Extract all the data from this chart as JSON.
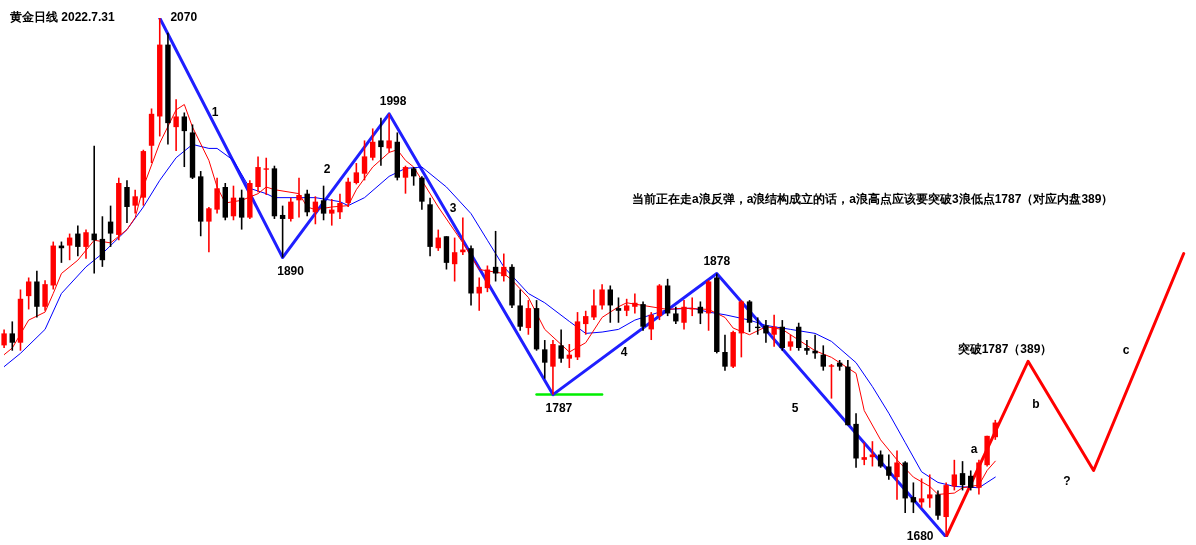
{
  "chart_data": {
    "type": "candlestick",
    "title": "黄金日线 2022.7.31",
    "categories": [
      null,
      null,
      null,
      null,
      null,
      null,
      null,
      null,
      null,
      null,
      null,
      null,
      null,
      null,
      null,
      null,
      null,
      null,
      null,
      null,
      null,
      null,
      null,
      null,
      null,
      null,
      null,
      null,
      null,
      null,
      null,
      null,
      null,
      null,
      null,
      null,
      null,
      null,
      null,
      null,
      null,
      null,
      null,
      null,
      null,
      null,
      null,
      null,
      null,
      null,
      null,
      null,
      null,
      null,
      null,
      null,
      null,
      null,
      null,
      null,
      null,
      null,
      null,
      null,
      null,
      null,
      null,
      null,
      null,
      null,
      null,
      null,
      null,
      null,
      null,
      null,
      null,
      null,
      null,
      null,
      null,
      null,
      null,
      null,
      null,
      null,
      null,
      null,
      null,
      null,
      null,
      null,
      null,
      null,
      null,
      null,
      null,
      null,
      null,
      null,
      null,
      null,
      null,
      null,
      null,
      null,
      null,
      null,
      null,
      null,
      null,
      null,
      null,
      null,
      null,
      null,
      null,
      null,
      null,
      null,
      null,
      null,
      null,
      null,
      null,
      null,
      null,
      null,
      null,
      null,
      null,
      null,
      null,
      null,
      null,
      null,
      null,
      null,
      null,
      null,
      null,
      null,
      null,
      null,
      null,
      null
    ],
    "colors": [
      "#ff0000",
      "#000000",
      "#ff0000",
      "#ff0000",
      "#000000",
      "#ff0000",
      "#ff0000",
      "#000000",
      "#ff0000",
      "#000000",
      "#ff0000",
      "#000000",
      "#000000",
      "#000000",
      "#ff0000",
      "#000000",
      "#ff0000",
      "#ff0000",
      "#ff0000",
      "#ff0000",
      "#000000",
      "#ff0000",
      "#000000",
      "#000000",
      "#000000",
      "#ff0000",
      "#ff0000",
      "#000000",
      "#ff0000",
      "#000000",
      "#ff0000",
      "#ff0000",
      "#ff0000",
      "#000000",
      "#000000",
      "#ff0000",
      "#ff0000",
      "#000000",
      "#ff0000",
      "#000000",
      "#ff0000",
      "#ff0000",
      "#ff0000",
      "#ff0000",
      "#ff0000",
      "#ff0000",
      "#000000",
      "#ff0000",
      "#000000",
      "#ff0000",
      "#000000",
      "#000000",
      "#000000",
      "#ff0000",
      "#000000",
      "#ff0000",
      "#ff0000",
      "#000000",
      "#ff0000",
      "#ff0000",
      "#000000",
      "#ff0000",
      "#000000",
      "#000000",
      "#ff0000",
      "#000000",
      "#000000",
      "#ff0000",
      "#000000",
      "#ff0000",
      "#ff0000",
      "#ff0000",
      "#ff0000",
      "#ff0000",
      "#000000",
      "#000000",
      "#ff0000",
      "#ff0000",
      "#000000",
      "#ff0000",
      "#ff0000",
      "#000000",
      "#000000",
      "#ff0000",
      "#ff0000",
      "#000000",
      "#ff0000",
      "#000000",
      "#000000",
      "#ff0000",
      "#ff0000",
      "#000000",
      "#000000",
      "#000000",
      "#ff0000",
      "#000000",
      "#ff0000",
      "#000000",
      "#000000",
      "#000000",
      "#000000",
      "#ff0000",
      "#000000",
      "#000000",
      "#000000",
      "#ff0000",
      "#ff0000",
      "#000000",
      "#000000",
      "#ff0000",
      "#000000",
      "#000000",
      "#ff0000",
      "#ff0000",
      "#000000",
      "#ff0000",
      "#ff0000",
      "#000000",
      "#000000",
      "#ff0000",
      "#ff0000",
      "#ff0000",
      null,
      null,
      null,
      null,
      null,
      null,
      null,
      null,
      null,
      null,
      null,
      null,
      null,
      null,
      null,
      null,
      null,
      null,
      null,
      null,
      null,
      null,
      null,
      null
    ],
    "ohlc": [
      [
        1824,
        1836,
        1822,
        1833
      ],
      [
        1833,
        1842,
        1820,
        1826
      ],
      [
        1826,
        1866,
        1820,
        1859
      ],
      [
        1861,
        1875,
        1851,
        1872
      ],
      [
        1872,
        1880,
        1845,
        1853
      ],
      [
        1853,
        1873,
        1850,
        1870
      ],
      [
        1869,
        1902,
        1866,
        1899
      ],
      [
        1899,
        1902,
        1886,
        1897
      ],
      [
        1899,
        1908,
        1888,
        1905
      ],
      [
        1908,
        1914,
        1891,
        1898
      ],
      [
        1898,
        1911,
        1889,
        1909
      ],
      [
        1908,
        1974,
        1878,
        1903
      ],
      [
        1904,
        1921,
        1883,
        1888
      ],
      [
        1917,
        1929,
        1898,
        1908
      ],
      [
        1907,
        1950,
        1903,
        1946
      ],
      [
        1943,
        1948,
        1916,
        1928
      ],
      [
        1929,
        1941,
        1923,
        1936
      ],
      [
        1935,
        1971,
        1929,
        1970
      ],
      [
        1974,
        2002,
        1961,
        1998
      ],
      [
        1996,
        2070,
        1981,
        2050
      ],
      [
        2050,
        2059,
        1975,
        1991
      ],
      [
        1988,
        2009,
        1970,
        1996
      ],
      [
        1996,
        1999,
        1958,
        1985
      ],
      [
        1984,
        1990,
        1949,
        1950
      ],
      [
        1951,
        1955,
        1906,
        1917
      ],
      [
        1917,
        1928,
        1894,
        1927
      ],
      [
        1926,
        1950,
        1923,
        1942
      ],
      [
        1943,
        1946,
        1918,
        1920
      ],
      [
        1921,
        1944,
        1918,
        1935
      ],
      [
        1935,
        1941,
        1911,
        1920
      ],
      [
        1920,
        1948,
        1919,
        1946
      ],
      [
        1943,
        1966,
        1939,
        1958
      ],
      [
        1956,
        1965,
        1937,
        1957
      ],
      [
        1957,
        1959,
        1919,
        1921
      ],
      [
        1922,
        1929,
        1890,
        1919
      ],
      [
        1919,
        1935,
        1917,
        1932
      ],
      [
        1933,
        1950,
        1920,
        1937
      ],
      [
        1938,
        1941,
        1921,
        1924
      ],
      [
        1924,
        1936,
        1915,
        1932
      ],
      [
        1933,
        1944,
        1918,
        1923
      ],
      [
        1923,
        1934,
        1914,
        1926
      ],
      [
        1924,
        1938,
        1919,
        1931
      ],
      [
        1931,
        1950,
        1928,
        1947
      ],
      [
        1946,
        1961,
        1945,
        1954
      ],
      [
        1953,
        1978,
        1948,
        1966
      ],
      [
        1965,
        1987,
        1963,
        1977
      ],
      [
        1978,
        1995,
        1959,
        1973
      ],
      [
        1972,
        1998,
        1969,
        1978
      ],
      [
        1977,
        1984,
        1948,
        1950
      ],
      [
        1950,
        1959,
        1938,
        1958
      ],
      [
        1957,
        1958,
        1944,
        1951
      ],
      [
        1950,
        1951,
        1926,
        1932
      ],
      [
        1930,
        1935,
        1891,
        1898
      ],
      [
        1897,
        1911,
        1895,
        1905
      ],
      [
        1906,
        1906,
        1881,
        1886
      ],
      [
        1885,
        1905,
        1872,
        1894
      ],
      [
        1894,
        1920,
        1892,
        1896
      ],
      [
        1897,
        1899,
        1854,
        1863
      ],
      [
        1863,
        1875,
        1850,
        1868
      ],
      [
        1867,
        1884,
        1864,
        1881
      ],
      [
        1883,
        1910,
        1872,
        1878
      ],
      [
        1876,
        1893,
        1872,
        1883
      ],
      [
        1883,
        1885,
        1852,
        1854
      ],
      [
        1854,
        1866,
        1835,
        1838
      ],
      [
        1837,
        1858,
        1832,
        1852
      ],
      [
        1852,
        1858,
        1820,
        1821
      ],
      [
        1821,
        1828,
        1799,
        1811
      ],
      [
        1808,
        1828,
        1787,
        1825
      ],
      [
        1824,
        1836,
        1811,
        1814
      ],
      [
        1814,
        1825,
        1807,
        1817
      ],
      [
        1815,
        1849,
        1813,
        1842
      ],
      [
        1840,
        1850,
        1832,
        1846
      ],
      [
        1845,
        1866,
        1843,
        1854
      ],
      [
        1854,
        1870,
        1851,
        1866
      ],
      [
        1866,
        1869,
        1841,
        1854
      ],
      [
        1852,
        1860,
        1841,
        1850
      ],
      [
        1850,
        1859,
        1846,
        1854
      ],
      [
        1853,
        1863,
        1848,
        1856
      ],
      [
        1855,
        1857,
        1835,
        1838
      ],
      [
        1836,
        1849,
        1828,
        1847
      ],
      [
        1846,
        1870,
        1843,
        1869
      ],
      [
        1869,
        1874,
        1846,
        1848
      ],
      [
        1848,
        1853,
        1840,
        1842
      ],
      [
        1841,
        1858,
        1836,
        1853
      ],
      [
        1851,
        1860,
        1846,
        1852
      ],
      [
        1853,
        1857,
        1840,
        1848
      ],
      [
        1848,
        1873,
        1835,
        1872
      ],
      [
        1875,
        1878,
        1818,
        1819
      ],
      [
        1819,
        1832,
        1805,
        1808
      ],
      [
        1808,
        1835,
        1807,
        1834
      ],
      [
        1833,
        1858,
        1815,
        1857
      ],
      [
        1857,
        1858,
        1834,
        1841
      ],
      [
        1838,
        1845,
        1832,
        1837
      ],
      [
        1839,
        1843,
        1826,
        1833
      ],
      [
        1832,
        1847,
        1823,
        1838
      ],
      [
        1838,
        1843,
        1820,
        1822
      ],
      [
        1823,
        1832,
        1820,
        1827
      ],
      [
        1838,
        1841,
        1820,
        1822
      ],
      [
        1822,
        1828,
        1817,
        1820
      ],
      [
        1820,
        1832,
        1814,
        1818
      ],
      [
        1817,
        1824,
        1805,
        1808
      ],
      [
        1808,
        1810,
        1784,
        1809
      ],
      [
        1811,
        1813,
        1805,
        1808
      ],
      [
        1808,
        1813,
        1764,
        1764
      ],
      [
        1765,
        1773,
        1732,
        1739
      ],
      [
        1738,
        1751,
        1734,
        1740
      ],
      [
        1740,
        1752,
        1733,
        1742
      ],
      [
        1742,
        1745,
        1732,
        1733
      ],
      [
        1733,
        1742,
        1723,
        1726
      ],
      [
        1725,
        1745,
        1708,
        1736
      ],
      [
        1736,
        1737,
        1698,
        1709
      ],
      [
        1710,
        1721,
        1698,
        1706
      ],
      [
        1706,
        1724,
        1702,
        1709
      ],
      [
        1709,
        1727,
        1702,
        1712
      ],
      [
        1712,
        1715,
        1693,
        1696
      ],
      [
        1695,
        1721,
        1680,
        1719
      ],
      [
        1718,
        1738,
        1715,
        1727
      ],
      [
        1728,
        1737,
        1715,
        1719
      ],
      [
        1726,
        1730,
        1715,
        1717
      ],
      [
        1717,
        1738,
        1712,
        1736
      ],
      [
        1734,
        1756,
        1733,
        1756
      ],
      [
        1755,
        1768,
        1753,
        1766
      ],
      null,
      null,
      null,
      null,
      null,
      null,
      null,
      null,
      null,
      null,
      null,
      null,
      null,
      null,
      null,
      null,
      null,
      null,
      null,
      null,
      null,
      null,
      null,
      null
    ],
    "series": [
      {
        "type": "line",
        "color": "#ff0000",
        "values": [
          1817,
          1822,
          null,
          1843,
          null,
          1849,
          1863,
          1878,
          null,
          1888,
          null,
          1903,
          null,
          1901,
          null,
          1911,
          1920,
          1943,
          null,
          1976,
          null,
          2001,
          2005,
          1988,
          null,
          1963,
          1943,
          1931,
          null,
          1933,
          null,
          1938,
          1943,
          1941,
          null,
          null,
          1938,
          1928,
          1926,
          null,
          1928,
          null,
          1929,
          1941,
          null,
          1958,
          null,
          1969,
          1971,
          1963,
          1958,
          null,
          null,
          1928,
          null,
          null,
          1901,
          null,
          1881,
          null,
          null,
          1878,
          1873,
          null,
          1860,
          null,
          1836,
          null,
          null,
          1819,
          null,
          1826,
          null,
          1845,
          null,
          1853,
          1856,
          null,
          null,
          null,
          null,
          1851,
          null,
          1852,
          null,
          null,
          1851,
          null,
          1845,
          1837,
          null,
          1832,
          null,
          1838,
          null,
          1836,
          null,
          1828,
          null,
          1820,
          null,
          1815,
          null,
          null,
          1803,
          1775,
          null,
          1753,
          null,
          1738,
          null,
          1725,
          null,
          1718,
          1712,
          null,
          1713,
          1717,
          null,
          1719,
          1730,
          1737,
          null,
          null,
          null,
          null,
          null,
          null,
          null,
          null,
          null,
          null,
          null,
          null,
          null,
          null,
          null,
          null,
          null,
          null,
          null,
          null,
          null,
          null,
          null,
          null
        ]
      },
      {
        "type": "line",
        "color": "#0000ff",
        "values": [
          1808,
          null,
          1818,
          null,
          null,
          1836,
          null,
          1863,
          null,
          null,
          1883,
          null,
          1893,
          null,
          null,
          1911,
          null,
          1928,
          null,
          1948,
          null,
          1965,
          null,
          1975,
          null,
          1972,
          1972,
          null,
          1963,
          null,
          1942,
          null,
          1938,
          1935,
          null,
          null,
          1935,
          null,
          1935,
          null,
          null,
          1932,
          1929,
          null,
          1935,
          null,
          null,
          1951,
          null,
          1957,
          null,
          1958,
          null,
          null,
          1943,
          null,
          null,
          1923,
          null,
          1903,
          null,
          1883,
          null,
          null,
          1863,
          null,
          1856,
          null,
          null,
          1842,
          null,
          1833,
          null,
          1834,
          null,
          1836,
          null,
          1843,
          null,
          null,
          null,
          1851,
          null,
          null,
          1852,
          null,
          1849,
          null,
          1847,
          null,
          null,
          1843,
          null,
          1839,
          null,
          null,
          1836,
          null,
          null,
          1833,
          null,
          1827,
          null,
          null,
          1811,
          null,
          1793,
          null,
          1773,
          null,
          1751,
          null,
          1729,
          null,
          1721,
          null,
          1718,
          null,
          null,
          1717,
          null,
          1725,
          null,
          null,
          null,
          null,
          null,
          null,
          null,
          null,
          null,
          null,
          null,
          null,
          null,
          null,
          null,
          null,
          null,
          null,
          null,
          null,
          null,
          null,
          null,
          null
        ]
      },
      {
        "type": "line",
        "color": "#1f1fff",
        "values": [
          null,
          null,
          null,
          null,
          null,
          null,
          null,
          null,
          null,
          null,
          null,
          null,
          null,
          null,
          null,
          null,
          null,
          null,
          null,
          2070,
          null,
          null,
          null,
          null,
          null,
          null,
          null,
          null,
          null,
          null,
          null,
          null,
          null,
          null,
          1890,
          null,
          null,
          null,
          null,
          null,
          null,
          null,
          null,
          null,
          null,
          null,
          null,
          1998,
          null,
          null,
          null,
          null,
          null,
          null,
          null,
          null,
          null,
          null,
          null,
          null,
          null,
          null,
          null,
          null,
          null,
          null,
          null,
          1787,
          null,
          null,
          null,
          null,
          null,
          null,
          null,
          null,
          null,
          null,
          null,
          null,
          null,
          null,
          null,
          null,
          null,
          null,
          null,
          1878,
          null,
          null,
          null,
          null,
          null,
          null,
          null,
          null,
          null,
          null,
          null,
          null,
          null,
          null,
          null,
          null,
          null,
          null,
          null,
          null,
          null,
          null,
          null,
          null,
          null,
          null,
          null,
          1680,
          null,
          null,
          null,
          null,
          null,
          null,
          null,
          null,
          null,
          null,
          null,
          null,
          null,
          null,
          null,
          null,
          null,
          null,
          null,
          null,
          null,
          null,
          null,
          null,
          null,
          null,
          null,
          null,
          null,
          null
        ],
        "value_labels": [
          null,
          null,
          null,
          null,
          null,
          null,
          null,
          null,
          null,
          null,
          null,
          null,
          null,
          null,
          null,
          null,
          null,
          null,
          null,
          "2070",
          null,
          null,
          null,
          null,
          null,
          null,
          null,
          null,
          null,
          null,
          null,
          null,
          null,
          null,
          "1890",
          null,
          null,
          null,
          null,
          null,
          null,
          null,
          null,
          null,
          null,
          null,
          null,
          "1998",
          null,
          null,
          null,
          null,
          null,
          null,
          null,
          null,
          null,
          null,
          null,
          null,
          null,
          null,
          null,
          null,
          null,
          null,
          null,
          "1787",
          null,
          null,
          null,
          null,
          null,
          null,
          null,
          null,
          null,
          null,
          null,
          null,
          null,
          null,
          null,
          null,
          null,
          null,
          null,
          "1878",
          null,
          null,
          null,
          null,
          null,
          null,
          null,
          null,
          null,
          null,
          null,
          null,
          null,
          null,
          null,
          null,
          null,
          null,
          null,
          null,
          null,
          null,
          null,
          null,
          null,
          null,
          null,
          "1680",
          null,
          null,
          null,
          null,
          null,
          null,
          null,
          null,
          null,
          null,
          null,
          null,
          null,
          null,
          null,
          null,
          null,
          null,
          null,
          null,
          null,
          null,
          null,
          null,
          null,
          null,
          null,
          null,
          null,
          null
        ]
      },
      {
        "type": "line",
        "color": "#ff0000",
        "values": [
          null,
          null,
          null,
          null,
          null,
          null,
          null,
          null,
          null,
          null,
          null,
          null,
          null,
          null,
          null,
          null,
          null,
          null,
          null,
          null,
          null,
          null,
          null,
          null,
          null,
          null,
          null,
          null,
          null,
          null,
          null,
          null,
          null,
          null,
          null,
          null,
          null,
          null,
          null,
          null,
          null,
          null,
          null,
          null,
          null,
          null,
          null,
          null,
          null,
          null,
          null,
          null,
          null,
          null,
          null,
          null,
          null,
          null,
          null,
          null,
          null,
          null,
          null,
          null,
          null,
          null,
          null,
          null,
          null,
          null,
          null,
          null,
          null,
          null,
          null,
          null,
          null,
          null,
          null,
          null,
          null,
          null,
          null,
          null,
          null,
          null,
          null,
          null,
          null,
          null,
          null,
          null,
          null,
          null,
          null,
          null,
          null,
          null,
          null,
          null,
          null,
          null,
          null,
          null,
          null,
          null,
          null,
          null,
          null,
          null,
          null,
          null,
          null,
          null,
          null,
          1680,
          null,
          null,
          null,
          null,
          null,
          null,
          null,
          null,
          null,
          1812,
          null,
          null,
          null,
          null,
          null,
          null,
          null,
          1730,
          null,
          null,
          null,
          null,
          null,
          null,
          null,
          null,
          null,
          null,
          1893,
          null
        ]
      },
      {
        "type": "line",
        "color": "#00ee00",
        "values": [
          null,
          null,
          null,
          null,
          null,
          null,
          null,
          null,
          null,
          null,
          null,
          null,
          null,
          null,
          null,
          null,
          null,
          null,
          null,
          null,
          null,
          null,
          null,
          null,
          null,
          null,
          null,
          null,
          null,
          null,
          null,
          null,
          null,
          null,
          null,
          null,
          null,
          null,
          null,
          null,
          null,
          null,
          null,
          null,
          null,
          null,
          null,
          null,
          null,
          null,
          null,
          null,
          null,
          null,
          null,
          null,
          null,
          null,
          null,
          null,
          null,
          null,
          null,
          null,
          null,
          1787,
          1787,
          1787,
          1787,
          1787,
          1787,
          1787,
          1787,
          1787,
          null,
          null,
          null,
          null,
          null,
          null,
          null,
          null,
          null,
          null,
          null,
          null,
          null,
          null,
          null,
          null,
          null,
          null,
          null,
          null,
          null,
          null,
          null,
          null,
          null,
          null,
          null,
          null,
          null,
          null,
          null,
          null,
          null,
          null,
          null,
          null,
          null,
          null,
          null,
          null,
          null,
          null,
          null,
          null,
          null,
          null,
          null,
          null,
          null,
          null,
          null,
          null,
          null,
          null,
          null,
          null,
          null,
          null,
          null,
          null,
          null,
          null,
          null,
          null,
          null,
          null,
          null,
          null,
          null,
          null,
          null,
          null
        ]
      }
    ],
    "annotations": [
      "1",
      "2",
      "3",
      "4",
      "5",
      "a",
      "b",
      "c",
      "?",
      "当前正在走a浪反弹，a浪结构成立的话，a浪高点应该要突破3浪低点1787（对应内盘389）",
      "突破1787（389）"
    ],
    "tick_labels": false,
    "grid": false,
    "legend": false
  }
}
